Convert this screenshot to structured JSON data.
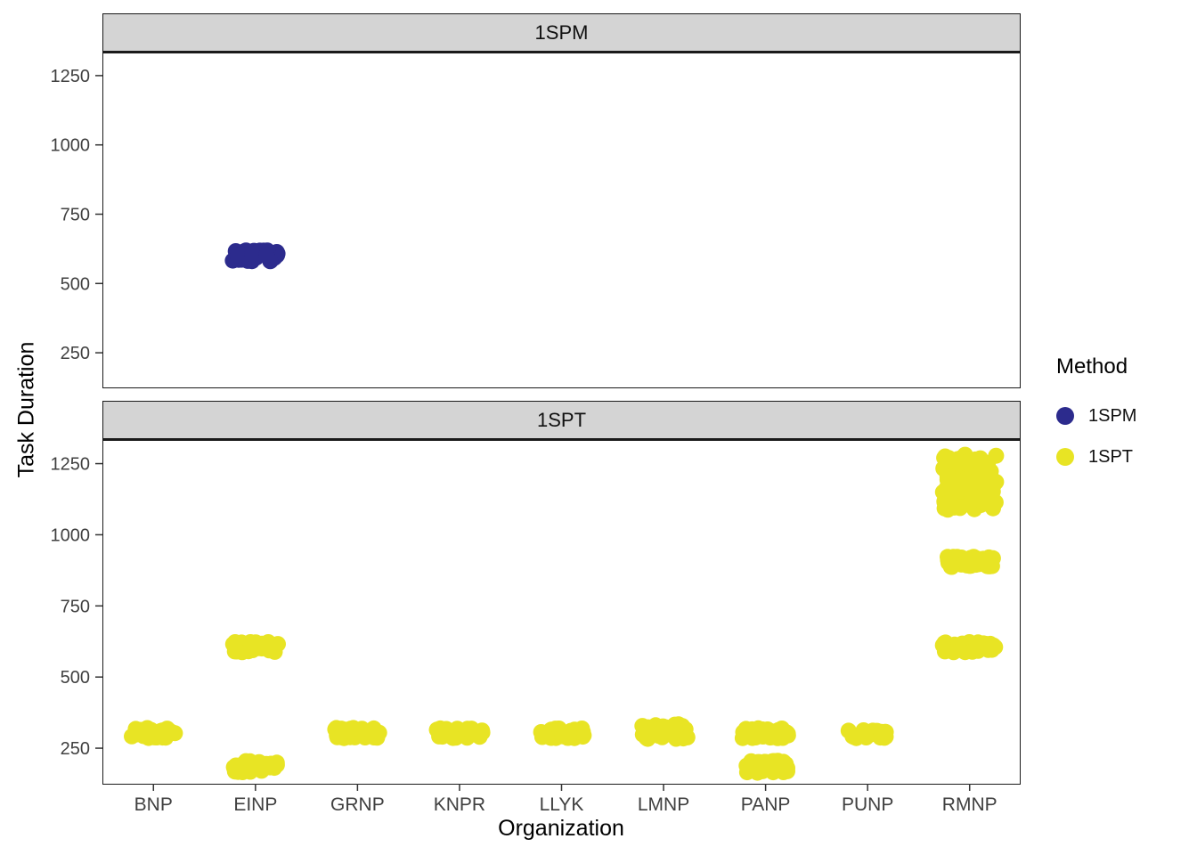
{
  "chart_data": {
    "type": "scatter",
    "title": "",
    "xlabel": "Organization",
    "ylabel": "Task Duration",
    "facets": [
      "1SPM",
      "1SPT"
    ],
    "categories": [
      "BNP",
      "EINP",
      "GRNP",
      "KNPR",
      "LLYK",
      "LMNP",
      "PANP",
      "PUNP",
      "RMNP"
    ],
    "y_ticks": [
      250,
      500,
      750,
      1000,
      1250
    ],
    "ylim": [
      125,
      1330
    ],
    "grid": false,
    "point_radius": 9,
    "strip_fill": "#d4d4d4",
    "legend": {
      "title": "Method",
      "position": "right",
      "items": [
        {
          "label": "1SPM",
          "color": "#2c2b8d"
        },
        {
          "label": "1SPT",
          "color": "#e8e424"
        }
      ]
    },
    "clusters": [
      {
        "facet": "1SPM",
        "organization": "EINP",
        "method": "1SPM",
        "y_center": 600,
        "y_spread": 20,
        "x_spread": 26,
        "n": 45
      },
      {
        "facet": "1SPT",
        "organization": "BNP",
        "method": "1SPT",
        "y_center": 303,
        "y_spread": 18,
        "x_spread": 25,
        "n": 40
      },
      {
        "facet": "1SPT",
        "organization": "EINP",
        "method": "1SPT",
        "y_center": 605,
        "y_spread": 18,
        "x_spread": 26,
        "n": 40
      },
      {
        "facet": "1SPT",
        "organization": "EINP",
        "method": "1SPT",
        "y_center": 185,
        "y_spread": 20,
        "x_spread": 25,
        "n": 36
      },
      {
        "facet": "1SPT",
        "organization": "GRNP",
        "method": "1SPT",
        "y_center": 303,
        "y_spread": 18,
        "x_spread": 25,
        "n": 40
      },
      {
        "facet": "1SPT",
        "organization": "KNPR",
        "method": "1SPT",
        "y_center": 303,
        "y_spread": 18,
        "x_spread": 27,
        "n": 40
      },
      {
        "facet": "1SPT",
        "organization": "LLYK",
        "method": "1SPT",
        "y_center": 303,
        "y_spread": 18,
        "x_spread": 25,
        "n": 40
      },
      {
        "facet": "1SPT",
        "organization": "LMNP",
        "method": "1SPT",
        "y_center": 308,
        "y_spread": 26,
        "x_spread": 27,
        "n": 45
      },
      {
        "facet": "1SPT",
        "organization": "PANP",
        "method": "1SPT",
        "y_center": 303,
        "y_spread": 18,
        "x_spread": 26,
        "n": 40
      },
      {
        "facet": "1SPT",
        "organization": "PANP",
        "method": "1SPT",
        "y_center": 185,
        "y_spread": 22,
        "x_spread": 26,
        "n": 38
      },
      {
        "facet": "1SPT",
        "organization": "PUNP",
        "method": "1SPT",
        "y_center": 300,
        "y_spread": 15,
        "x_spread": 22,
        "n": 30
      },
      {
        "facet": "1SPT",
        "organization": "RMNP",
        "method": "1SPT",
        "y_center": 1185,
        "y_spread": 100,
        "x_spread": 30,
        "n": 140
      },
      {
        "facet": "1SPT",
        "organization": "RMNP",
        "method": "1SPT",
        "y_center": 905,
        "y_spread": 18,
        "x_spread": 27,
        "n": 40
      },
      {
        "facet": "1SPT",
        "organization": "RMNP",
        "method": "1SPT",
        "y_center": 605,
        "y_spread": 18,
        "x_spread": 30,
        "n": 42
      }
    ]
  }
}
